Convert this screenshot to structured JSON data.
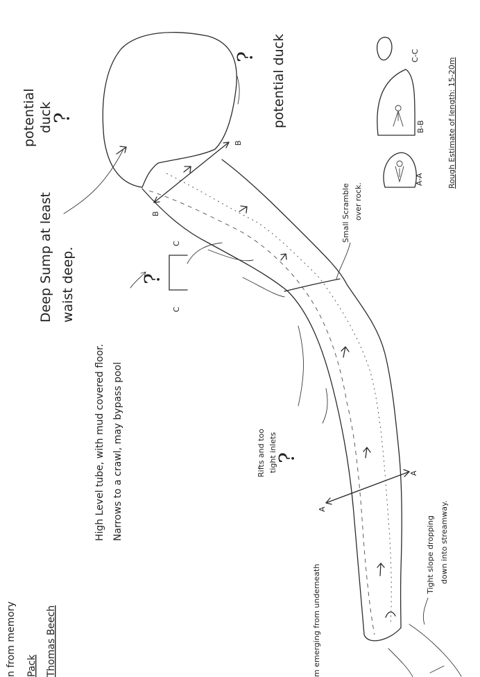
{
  "notes": {
    "memory_note_1": "n from memory",
    "memory_note_2": "Pack",
    "memory_note_3": "Thomas Beech",
    "emerging": "m emerging from underneath",
    "high_level_tube_1": "High Level tube, with mud covered floor.",
    "high_level_tube_2": "Narrows to a crawl, may bypass pool",
    "deep_sump_1": "Deep Sump at least",
    "deep_sump_2": "waist deep.",
    "potential_duck_top_1": "potential",
    "potential_duck_top_2": "duck",
    "potential_duck_right": "potential duck",
    "small_scramble_1": "Small Scramble",
    "small_scramble_2": "over rock.",
    "rifts_1": "Rifts and too",
    "rifts_2": "tight inlets",
    "tight_slope_1": "Tight slope dropping",
    "tight_slope_2": "down into streamway.",
    "rough_estimate": "Rough Estimate of length: 15-20m"
  },
  "question_marks": {
    "duck_top": "?",
    "duck_right": "?",
    "inlets": "?",
    "tube": "?"
  },
  "section_labels": {
    "a_left": "A",
    "a_right": "A",
    "b_left": "B",
    "b_right": "B",
    "c_top": "C",
    "c_bottom": "C",
    "aa": "A-A",
    "bb": "B-B",
    "cc": "C-C"
  }
}
